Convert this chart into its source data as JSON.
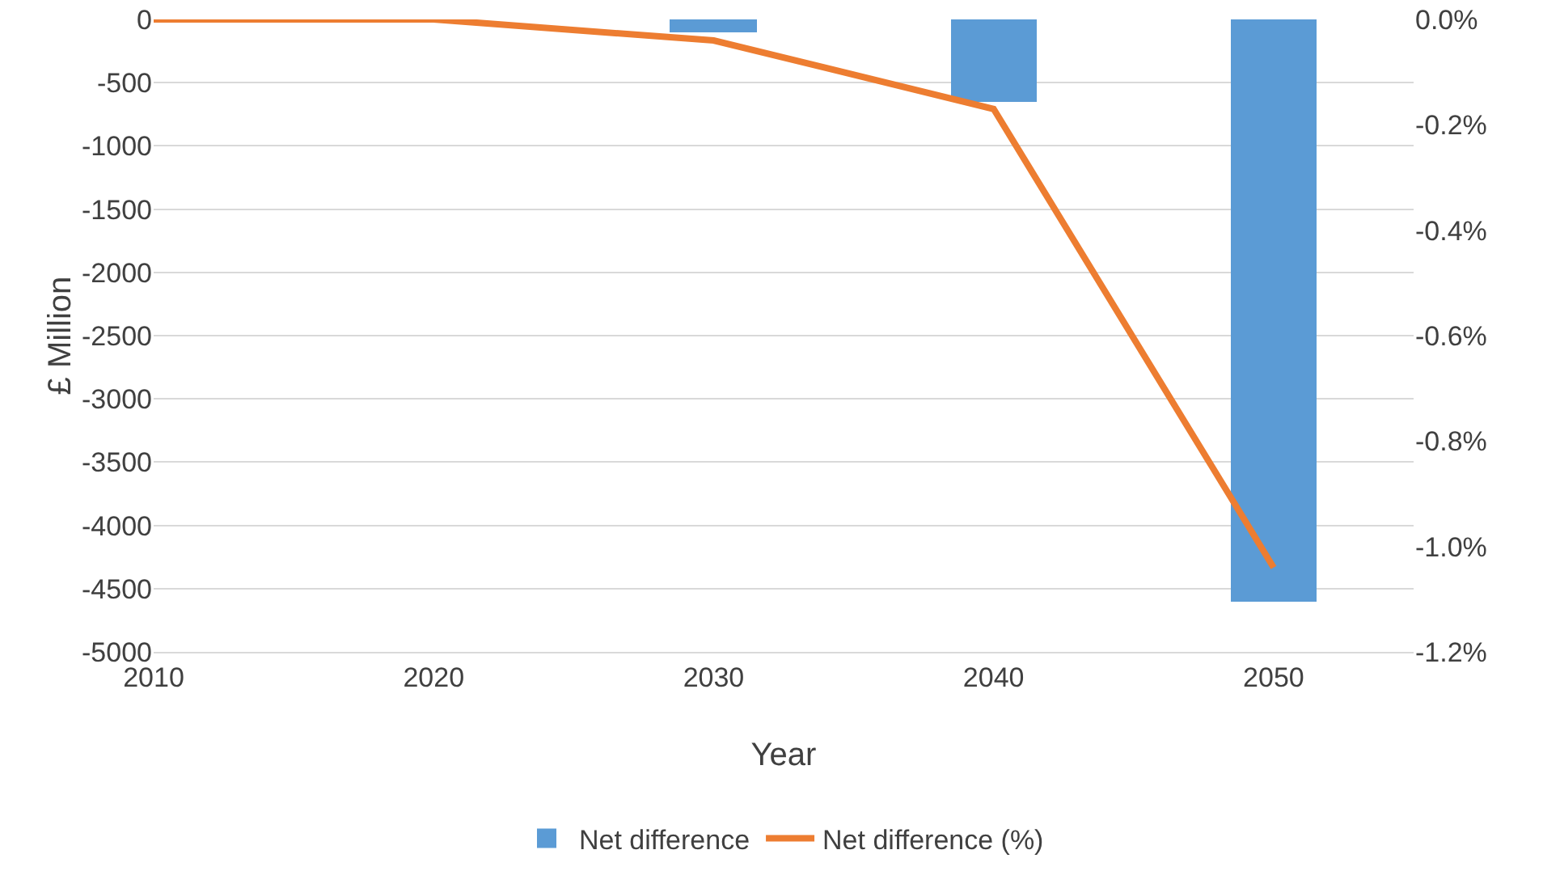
{
  "chart_data": {
    "type": "bar",
    "xlabel": "Year",
    "ylabel": "£ Million",
    "x": [
      2010,
      2020,
      2030,
      2040,
      2050
    ],
    "xlim": [
      2010,
      2055
    ],
    "xticks": [
      2010,
      2020,
      2030,
      2040,
      2050
    ],
    "ylim": [
      -5000,
      0
    ],
    "yticks": [
      -5000,
      -4500,
      -4000,
      -3500,
      -3000,
      -2500,
      -2000,
      -1500,
      -1000,
      -500,
      0
    ],
    "y2lim": [
      -1.2,
      0
    ],
    "y2ticks": [
      {
        "value": -1.2,
        "label": "-1.2%"
      },
      {
        "value": -1,
        "label": "-1.0%"
      },
      {
        "value": -0.8,
        "label": "-0.8%"
      },
      {
        "value": -0.6,
        "label": "-0.6%"
      },
      {
        "value": -0.4,
        "label": "-0.4%"
      },
      {
        "value": -0.2,
        "label": "-0.2%"
      },
      {
        "value": 0,
        "label": "0.0%"
      }
    ],
    "series": [
      {
        "name": "Net difference",
        "color": "#5b9bd5",
        "values": [
          0,
          0,
          -100,
          -650,
          -4600
        ]
      },
      {
        "name": "Net difference (%)",
        "type": "line",
        "axis": "y2",
        "color": "#ed7d31",
        "values": [
          0,
          0,
          -0.04,
          -0.17,
          -1.04
        ]
      }
    ],
    "grid": "y",
    "legend": "bottom",
    "marker": "none",
    "line_style": "solid"
  }
}
